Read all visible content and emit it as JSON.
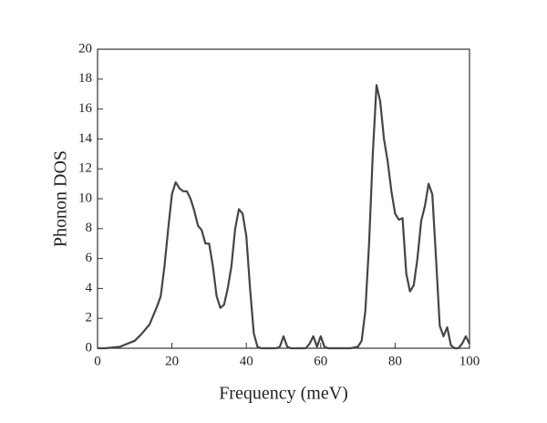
{
  "chart_data": {
    "type": "line",
    "xlabel": "Frequency (meV)",
    "ylabel": "Phonon DOS",
    "x": [
      0,
      2,
      4,
      6,
      8,
      10,
      12,
      14,
      16,
      17,
      18,
      19,
      20,
      21,
      22,
      23,
      24,
      25,
      26,
      27,
      28,
      29,
      30,
      31,
      32,
      33,
      34,
      35,
      36,
      37,
      38,
      39,
      40,
      41,
      42,
      43,
      44,
      48,
      49,
      50,
      51,
      52,
      56,
      57,
      58,
      59,
      60,
      61,
      62,
      68,
      70,
      71,
      72,
      73,
      74,
      75,
      76,
      77,
      78,
      79,
      80,
      81,
      82,
      83,
      84,
      85,
      86,
      87,
      88,
      89,
      90,
      91,
      92,
      93,
      94,
      95,
      96,
      97,
      98,
      99,
      100
    ],
    "values": [
      0,
      0,
      0.05,
      0.1,
      0.3,
      0.5,
      1.0,
      1.6,
      2.8,
      3.5,
      5.5,
      8.0,
      10.3,
      11.1,
      10.7,
      10.5,
      10.5,
      10.0,
      9.2,
      8.2,
      7.9,
      7.0,
      7.0,
      5.5,
      3.5,
      2.7,
      2.9,
      4.0,
      5.5,
      8.0,
      9.3,
      9.0,
      7.5,
      4.0,
      1.0,
      0.1,
      0,
      0,
      0.1,
      0.8,
      0.1,
      0,
      0,
      0.3,
      0.8,
      0.1,
      0.8,
      0.1,
      0,
      0,
      0.1,
      0.5,
      2.5,
      7.0,
      13.0,
      17.6,
      16.5,
      14.0,
      12.5,
      10.5,
      9.0,
      8.6,
      8.7,
      5.0,
      3.8,
      4.2,
      6.0,
      8.5,
      9.5,
      11.0,
      10.3,
      6.0,
      1.5,
      0.8,
      1.4,
      0.2,
      0,
      0,
      0.3,
      0.8,
      0.3
    ],
    "color": "#454545",
    "xlim": [
      0,
      100
    ],
    "xticks": [
      0,
      20,
      40,
      60,
      80,
      100
    ],
    "ylim": [
      0,
      20
    ],
    "yticks": [
      0,
      2,
      4,
      6,
      8,
      10,
      12,
      14,
      16,
      18,
      20
    ]
  }
}
